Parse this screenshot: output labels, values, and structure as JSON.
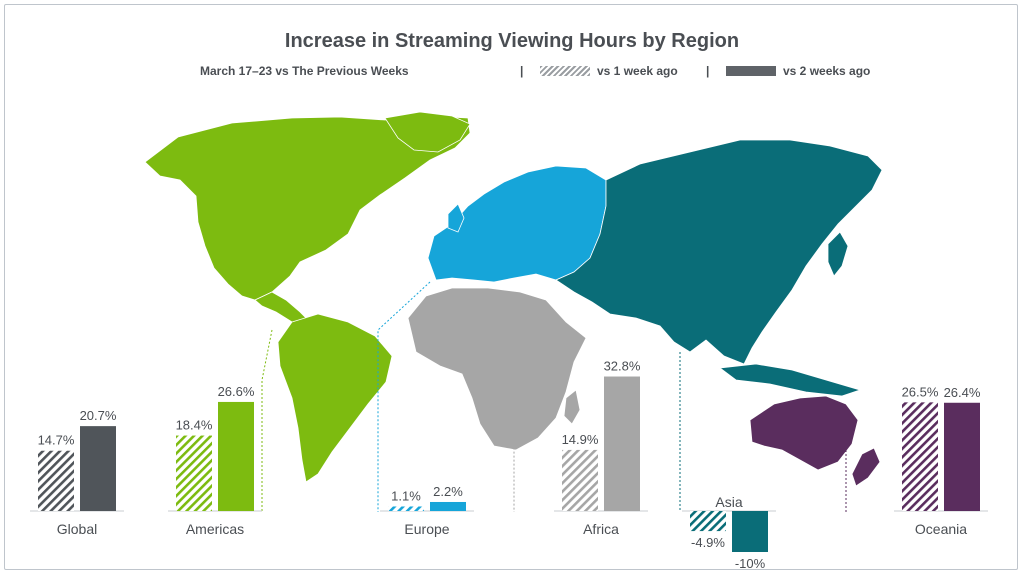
{
  "title": "Increase in Streaming Viewing Hours by Region",
  "subtitle": {
    "period": "March 17–23 vs The Previous Weeks",
    "sep1": "|",
    "legend_1": "vs 1 week ago",
    "sep2": "|",
    "legend_2": "vs 2 weeks ago"
  },
  "colors": {
    "Global": "#50555a",
    "Americas": "#7dbb10",
    "Europe": "#16a5d9",
    "Africa": "#a6a6a6",
    "Asia": "#0a6d78",
    "Oceania": "#5a2d5e"
  },
  "chart_data": {
    "type": "bar",
    "categories": [
      "Global",
      "Americas",
      "Europe",
      "Africa",
      "Asia",
      "Oceania"
    ],
    "series": [
      {
        "name": "vs 1 week ago",
        "values": [
          14.7,
          18.4,
          1.1,
          14.9,
          -4.9,
          26.5
        ]
      },
      {
        "name": "vs 2 weeks ago",
        "values": [
          20.7,
          26.6,
          2.2,
          32.8,
          -10,
          26.4
        ]
      }
    ],
    "value_labels": [
      [
        "14.7%",
        "20.7%"
      ],
      [
        "18.4%",
        "26.6%"
      ],
      [
        "1.1%",
        "2.2%"
      ],
      [
        "14.9%",
        "32.8%"
      ],
      [
        "-4.9%",
        "-10%"
      ],
      [
        "26.5%",
        "26.4%"
      ]
    ],
    "unit": "%"
  }
}
